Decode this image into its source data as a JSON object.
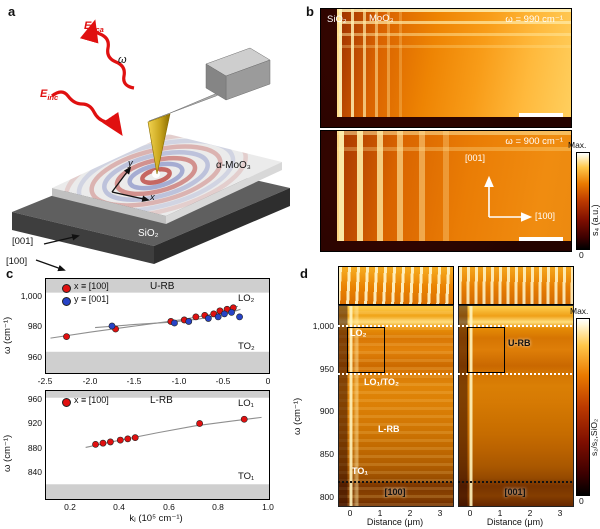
{
  "panel_a": {
    "label": "a",
    "e_sca_base": "E",
    "e_sca_sub": "sca",
    "e_inc_base": "E",
    "e_inc_sub": "inc",
    "omega": "ω",
    "sample": "α-MoO₃",
    "substrate": "SiO₂",
    "axis_x": "x",
    "axis_y": "y",
    "dir_001": "[001]",
    "dir_100": "[100]"
  },
  "panel_b": {
    "label": "b",
    "substrate": "SiO₂",
    "sample": "MoO₃",
    "freq_top": "ω = 990 cm⁻¹",
    "freq_bottom": "ω = 900 cm⁻¹",
    "axis_v": "[001]",
    "axis_h": "[100]",
    "colorbar": {
      "max": "Max.",
      "min": "0",
      "label": "s₄ (a.u.)"
    }
  },
  "panel_c": {
    "label": "c",
    "ylabel": "ω (cm⁻¹)",
    "xlabel": "kⱼ (10⁵ cm⁻¹)",
    "top": {
      "legend_x": "x ≡ [100]",
      "legend_y": "y ≡ [001]",
      "branch": "U-RB",
      "band_top": "LO₂",
      "band_bottom": "TO₂",
      "yticks": [
        "1,000",
        "980",
        "960"
      ],
      "xticks": [
        "-2.5",
        "-2.0",
        "-1.5",
        "-1.0",
        "-0.5",
        "0"
      ]
    },
    "bottom": {
      "legend_x": "x ≡ [100]",
      "branch": "L-RB",
      "band_top": "LO₁",
      "band_bottom": "TO₁",
      "yticks": [
        "960",
        "920",
        "880",
        "840"
      ],
      "xticks": [
        "0.2",
        "0.4",
        "0.6",
        "0.8",
        "1.0"
      ]
    }
  },
  "panel_d": {
    "label": "d",
    "ylabel": "ω (cm⁻¹)",
    "yticks": [
      "1,000",
      "950",
      "900",
      "850",
      "800"
    ],
    "xticks": [
      "0",
      "1",
      "2",
      "3"
    ],
    "xlabel": "Distance (μm)",
    "map_left_dir": "[100]",
    "map_right_dir": "[001]",
    "ann_lo2": "LO₂",
    "ann_urb": "U-RB",
    "ann_lo1to2": "LO₁/TO₂",
    "ann_lrb": "L-RB",
    "ann_to1": "TO₁",
    "colorbar": {
      "max": "Max.",
      "min": "0",
      "label": "s₂/s₂,SiO₂"
    }
  },
  "chart_data": [
    {
      "type": "scatter",
      "panel": "c-top",
      "branch": "U-RB",
      "xlabel": "kⱼ (10⁵ cm⁻¹)",
      "ylabel": "ω (cm⁻¹)",
      "xlim": [
        -2.5,
        0
      ],
      "ylim": [
        950,
        1012
      ],
      "legend_position": "top-left",
      "grid": false,
      "bands": [
        {
          "label": "LO₂",
          "range": [
            1003,
            1012
          ]
        },
        {
          "label": "TO₂",
          "range": [
            950,
            964
          ]
        }
      ],
      "series": [
        {
          "name": "x ≡ [100]",
          "color": "#e01010",
          "points": [
            [
              -2.27,
              974
            ],
            [
              -1.72,
              979
            ],
            [
              -1.1,
              984
            ],
            [
              -0.95,
              985
            ],
            [
              -0.82,
              987
            ],
            [
              -0.72,
              988
            ],
            [
              -0.62,
              989
            ],
            [
              -0.55,
              991
            ],
            [
              -0.47,
              992
            ],
            [
              -0.4,
              993
            ]
          ]
        },
        {
          "name": "y ≡ [001]",
          "color": "#2743c6",
          "points": [
            [
              -1.76,
              981
            ],
            [
              -1.06,
              983
            ],
            [
              -0.9,
              984
            ],
            [
              -0.68,
              986
            ],
            [
              -0.57,
              987
            ],
            [
              -0.5,
              989
            ],
            [
              -0.42,
              990
            ],
            [
              -0.33,
              987
            ]
          ]
        }
      ],
      "fits": [
        {
          "series": "x ≡ [100]",
          "points": [
            [
              -2.45,
              973
            ],
            [
              -2.0,
              977
            ],
            [
              -1.5,
              981
            ],
            [
              -1.0,
              985
            ],
            [
              -0.7,
              988
            ],
            [
              -0.5,
              991
            ],
            [
              -0.35,
              994
            ]
          ]
        },
        {
          "series": "y ≡ [001]",
          "points": [
            [
              -1.95,
              980
            ],
            [
              -1.5,
              982
            ],
            [
              -1.1,
              983.5
            ],
            [
              -0.8,
              985.5
            ],
            [
              -0.6,
              987.5
            ],
            [
              -0.45,
              989.5
            ],
            [
              -0.32,
              992
            ]
          ]
        }
      ]
    },
    {
      "type": "scatter",
      "panel": "c-bottom",
      "branch": "L-RB",
      "xlabel": "kⱼ (10⁵ cm⁻¹)",
      "ylabel": "ω (cm⁻¹)",
      "xlim": [
        0.1,
        1.0
      ],
      "ylim": [
        798,
        974
      ],
      "legend_position": "top-left",
      "grid": false,
      "bands": [
        {
          "label": "LO₁",
          "range": [
            963,
            974
          ]
        },
        {
          "label": "TO₁",
          "range": [
            798,
            822
          ]
        }
      ],
      "series": [
        {
          "name": "x ≡ [100]",
          "color": "#e01010",
          "points": [
            [
              0.3,
              887
            ],
            [
              0.33,
              889
            ],
            [
              0.36,
              891
            ],
            [
              0.4,
              894
            ],
            [
              0.43,
              896
            ],
            [
              0.46,
              898
            ],
            [
              0.72,
              921
            ],
            [
              0.9,
              928
            ]
          ]
        }
      ],
      "fits": [
        {
          "series": "x ≡ [100]",
          "points": [
            [
              0.26,
              882
            ],
            [
              0.4,
              894
            ],
            [
              0.55,
              906
            ],
            [
              0.7,
              917
            ],
            [
              0.85,
              925
            ],
            [
              0.97,
              931
            ]
          ]
        }
      ]
    },
    {
      "type": "heatmap",
      "panel": "b",
      "images": [
        {
          "sample": "MoO₃",
          "substrate": "SiO₂",
          "frequency": "ω = 990 cm⁻¹"
        },
        {
          "frequency": "ω = 900 cm⁻¹"
        }
      ],
      "colorbar": {
        "label": "s₄ (a.u.)",
        "min": "0",
        "max": "Max."
      }
    },
    {
      "type": "heatmap",
      "panel": "d",
      "maps": [
        {
          "direction": "[100]"
        },
        {
          "direction": "[001]"
        }
      ],
      "xlabel": "Distance (μm)",
      "xticks": [
        0,
        1,
        2,
        3
      ],
      "ylabel": "ω (cm⁻¹)",
      "ylim": [
        790,
        1025
      ],
      "dashed_lines": [
        {
          "label": "LO₂",
          "omega": 1002
        },
        {
          "label": "LO₁/TO₂",
          "omega": 945
        },
        {
          "label": "TO₁",
          "omega": 818
        }
      ],
      "regions": [
        {
          "label": "U-RB"
        },
        {
          "label": "L-RB"
        }
      ],
      "colorbar": {
        "label": "s₂/s₂,SiO₂",
        "min": "0",
        "max": "Max."
      }
    }
  ]
}
